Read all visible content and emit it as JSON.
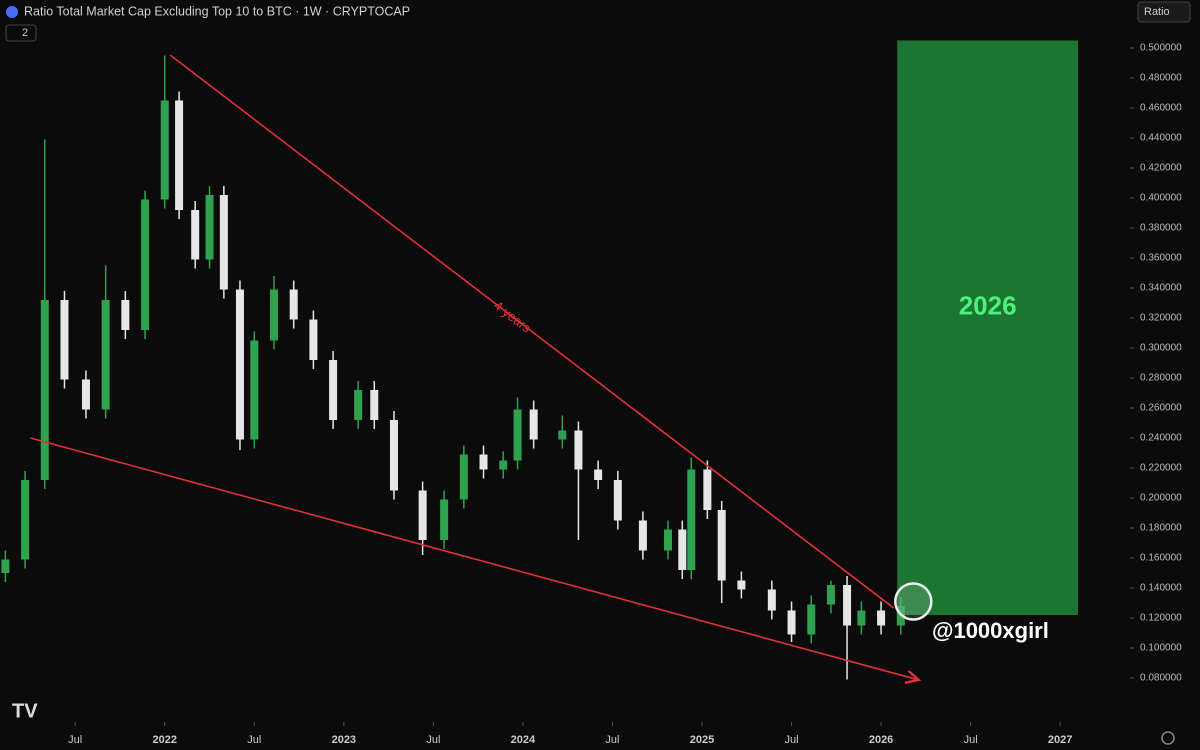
{
  "chart_data": {
    "type": "candlestick",
    "title": "Ratio Total Market Cap Excluding Top 10 to BTC · 1W · CRYPTOCAP",
    "indicator_badge": "2",
    "scale_button": "Ratio",
    "watermark": "@1000xgirl",
    "up_color": "#2fa24f",
    "down_color": "#e6e6e6",
    "x": [
      2021.11,
      2021.22,
      2021.33,
      2021.44,
      2021.56,
      2021.67,
      2021.78,
      2021.89,
      2022.0,
      2022.08,
      2022.17,
      2022.25,
      2022.33,
      2022.42,
      2022.5,
      2022.61,
      2022.72,
      2022.83,
      2022.94,
      2023.08,
      2023.17,
      2023.28,
      2023.44,
      2023.56,
      2023.67,
      2023.78,
      2023.89,
      2023.97,
      2024.06,
      2024.22,
      2024.31,
      2024.42,
      2024.53,
      2024.67,
      2024.81,
      2024.89,
      2024.94,
      2025.03,
      2025.11,
      2025.22,
      2025.39,
      2025.5,
      2025.61,
      2025.72,
      2025.81,
      2025.89,
      2026.0,
      2026.11
    ],
    "open": [
      0.15,
      0.159,
      0.212,
      0.332,
      0.279,
      0.259,
      0.332,
      0.312,
      0.399,
      0.465,
      0.392,
      0.359,
      0.402,
      0.339,
      0.239,
      0.305,
      0.339,
      0.319,
      0.292,
      0.252,
      0.272,
      0.252,
      0.205,
      0.172,
      0.199,
      0.229,
      0.219,
      0.225,
      0.259,
      0.239,
      0.245,
      0.219,
      0.212,
      0.185,
      0.165,
      0.179,
      0.152,
      0.219,
      0.192,
      0.145,
      0.139,
      0.125,
      0.109,
      0.129,
      0.142,
      0.115,
      0.125,
      0.115
    ],
    "high": [
      0.165,
      0.218,
      0.439,
      0.338,
      0.285,
      0.355,
      0.338,
      0.405,
      0.495,
      0.471,
      0.398,
      0.408,
      0.408,
      0.345,
      0.311,
      0.348,
      0.345,
      0.325,
      0.298,
      0.278,
      0.278,
      0.258,
      0.211,
      0.205,
      0.235,
      0.235,
      0.231,
      0.267,
      0.265,
      0.255,
      0.251,
      0.225,
      0.218,
      0.191,
      0.185,
      0.185,
      0.227,
      0.225,
      0.198,
      0.151,
      0.145,
      0.131,
      0.135,
      0.145,
      0.148,
      0.131,
      0.131,
      0.134
    ],
    "low": [
      0.144,
      0.153,
      0.206,
      0.273,
      0.253,
      0.253,
      0.306,
      0.306,
      0.393,
      0.386,
      0.353,
      0.353,
      0.333,
      0.232,
      0.233,
      0.299,
      0.313,
      0.286,
      0.246,
      0.246,
      0.246,
      0.199,
      0.162,
      0.166,
      0.193,
      0.213,
      0.213,
      0.219,
      0.233,
      0.233,
      0.172,
      0.206,
      0.179,
      0.159,
      0.159,
      0.146,
      0.146,
      0.186,
      0.13,
      0.133,
      0.119,
      0.104,
      0.103,
      0.123,
      0.079,
      0.109,
      0.109,
      0.109
    ],
    "close": [
      0.159,
      0.212,
      0.332,
      0.279,
      0.259,
      0.332,
      0.312,
      0.399,
      0.465,
      0.392,
      0.359,
      0.402,
      0.339,
      0.239,
      0.305,
      0.339,
      0.319,
      0.292,
      0.252,
      0.272,
      0.252,
      0.205,
      0.172,
      0.199,
      0.229,
      0.219,
      0.225,
      0.259,
      0.239,
      0.245,
      0.219,
      0.212,
      0.185,
      0.165,
      0.179,
      0.152,
      0.219,
      0.192,
      0.145,
      0.139,
      0.125,
      0.109,
      0.129,
      0.142,
      0.115,
      0.125,
      0.115,
      0.128
    ],
    "xlim": [
      2021.08,
      2027.39
    ],
    "ylim": [
      0.052,
      0.532
    ],
    "xticks": [
      {
        "value": 2021.5,
        "label": "Jul"
      },
      2022,
      {
        "value": 2022.5,
        "label": "Jul"
      },
      2023,
      {
        "value": 2023.5,
        "label": "Jul"
      },
      2024,
      {
        "value": 2024.5,
        "label": "Jul"
      },
      2025,
      {
        "value": 2025.5,
        "label": "Jul"
      },
      2026,
      {
        "value": 2026.5,
        "label": "Jul"
      },
      2027
    ],
    "yticks": [
      {
        "value": 0.5,
        "label": "0.500000"
      },
      {
        "value": 0.48,
        "label": "0.480000"
      },
      {
        "value": 0.46,
        "label": "0.460000"
      },
      {
        "value": 0.44,
        "label": "0.440000"
      },
      {
        "value": 0.42,
        "label": "0.420000"
      },
      {
        "value": 0.4,
        "label": "0.400000"
      },
      {
        "value": 0.38,
        "label": "0.380000"
      },
      {
        "value": 0.36,
        "label": "0.360000"
      },
      {
        "value": 0.34,
        "label": "0.340000"
      },
      {
        "value": 0.32,
        "label": "0.320000"
      },
      {
        "value": 0.3,
        "label": "0.300000"
      },
      {
        "value": 0.28,
        "label": "0.280000"
      },
      {
        "value": 0.26,
        "label": "0.260000"
      },
      {
        "value": 0.24,
        "label": "0.240000"
      },
      {
        "value": 0.22,
        "label": "0.220000"
      },
      {
        "value": 0.2,
        "label": "0.200000"
      },
      {
        "value": 0.18,
        "label": "0.180000"
      },
      {
        "value": 0.16,
        "label": "0.160000"
      },
      {
        "value": 0.14,
        "label": "0.140000"
      },
      {
        "value": 0.12,
        "label": "0.120000"
      },
      {
        "value": 0.1,
        "label": "0.100000"
      },
      {
        "value": 0.08,
        "label": "0.080000"
      }
    ],
    "trendlines": [
      {
        "x": [
          2022.03,
          2026.07
        ],
        "y": [
          0.4953,
          0.1267
        ],
        "label": "4 years"
      },
      {
        "x": [
          2021.25,
          2026.21
        ],
        "y": [
          0.24,
          0.0787
        ]
      }
    ],
    "highlight": {
      "label": "2026",
      "color": "#1f8a3a",
      "xlim": [
        2026.09,
        2027.1
      ],
      "ylim": [
        0.122,
        0.505
      ]
    },
    "circle": {
      "x": 2026.18,
      "y": 0.131
    }
  }
}
